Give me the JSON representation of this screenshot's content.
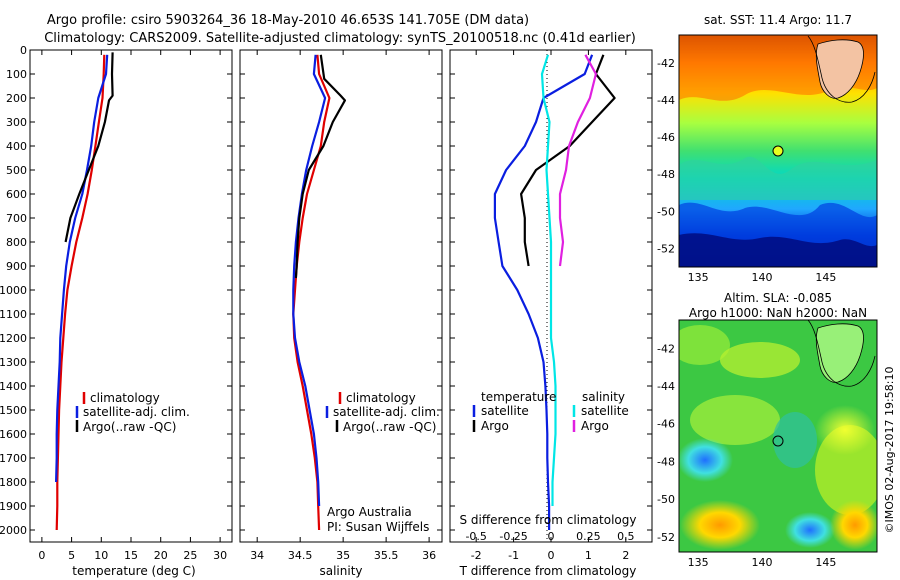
{
  "header": {
    "line1": "Argo profile: csiro 5903264_36 18-May-2010 46.653S 141.705E (DM data)",
    "line2": "Climatology: CARS2009. Satellite-adjusted climatology: synTS_20100518.nc (0.41d earlier)"
  },
  "colors": {
    "climatology": "#e00000",
    "satellite": "#0a1ee0",
    "argo": "#000000",
    "salinity_sat": "#00e6e6",
    "salinity_argo": "#e020e0"
  },
  "credits": {
    "org": "Argo Australia",
    "pi": "PI: Susan Wijffels",
    "imos": "©IMOS 02-Aug-2017 19:58:10"
  },
  "chart_data": [
    {
      "type": "line",
      "id": "temperature-profile",
      "xlabel": "temperature (deg C)",
      "ylabel": "",
      "xlim": [
        -2,
        32
      ],
      "ylim": [
        2050,
        0
      ],
      "x_ticks": [
        0,
        5,
        10,
        15,
        20,
        25,
        30
      ],
      "y_ticks": [
        0,
        100,
        200,
        300,
        400,
        500,
        600,
        700,
        800,
        900,
        1000,
        1100,
        1200,
        1300,
        1400,
        1500,
        1600,
        1700,
        1800,
        1900,
        2000
      ],
      "legend": [
        "climatology",
        "satellite-adj. clim.",
        "Argo(..raw -QC)"
      ],
      "legend_position": "lower-middle",
      "series": [
        {
          "name": "climatology",
          "color": "#e00000",
          "x": [
            10.5,
            10.4,
            10.2,
            9.6,
            9.0,
            8.4,
            7.7,
            6.8,
            5.8,
            5.0,
            4.3,
            3.9,
            3.6,
            3.3,
            3.1,
            2.9,
            2.8,
            2.7,
            2.6,
            2.6,
            2.5
          ],
          "y": [
            20,
            100,
            200,
            300,
            400,
            500,
            600,
            700,
            800,
            900,
            1000,
            1100,
            1200,
            1300,
            1400,
            1500,
            1600,
            1700,
            1800,
            1900,
            2000
          ]
        },
        {
          "name": "satellite-adj. clim.",
          "color": "#0a1ee0",
          "x": [
            11.0,
            10.8,
            9.5,
            8.8,
            8.3,
            7.6,
            6.8,
            5.6,
            4.7,
            4.1,
            3.7,
            3.4,
            3.1,
            3.0,
            2.8,
            2.6,
            2.5,
            2.5,
            2.4
          ],
          "y": [
            20,
            100,
            200,
            300,
            400,
            500,
            600,
            700,
            800,
            900,
            1000,
            1100,
            1200,
            1300,
            1400,
            1500,
            1600,
            1700,
            1800
          ]
        },
        {
          "name": "Argo(..raw -QC)",
          "color": "#000000",
          "x": [
            11.9,
            11.8,
            11.9,
            11.3,
            10.6,
            9.5,
            7.9,
            6.3,
            4.8,
            4.0
          ],
          "y": [
            10,
            100,
            190,
            210,
            300,
            400,
            500,
            600,
            700,
            800
          ]
        }
      ]
    },
    {
      "type": "line",
      "id": "salinity-profile",
      "xlabel": "salinity",
      "ylabel": "",
      "xlim": [
        33.8,
        36.15
      ],
      "ylim": [
        2050,
        0
      ],
      "x_ticks": [
        34,
        34.5,
        35,
        35.5,
        36
      ],
      "legend": [
        "climatology",
        "satellite-adj. clim.",
        "Argo(..raw -QC)"
      ],
      "legend_position": "lower-middle",
      "series": [
        {
          "name": "climatology",
          "color": "#e00000",
          "x": [
            34.7,
            34.72,
            34.84,
            34.78,
            34.74,
            34.66,
            34.58,
            34.53,
            34.49,
            34.46,
            34.44,
            34.42,
            34.43,
            34.47,
            34.53,
            34.58,
            34.63,
            34.67,
            34.7,
            34.71,
            34.72
          ],
          "y": [
            20,
            100,
            200,
            300,
            400,
            500,
            600,
            700,
            800,
            900,
            1000,
            1100,
            1200,
            1300,
            1400,
            1500,
            1600,
            1700,
            1800,
            1900,
            2000
          ]
        },
        {
          "name": "satellite-adj. clim.",
          "color": "#0a1ee0",
          "x": [
            34.68,
            34.66,
            34.79,
            34.72,
            34.64,
            34.57,
            34.52,
            34.48,
            34.45,
            34.43,
            34.42,
            34.42,
            34.44,
            34.49,
            34.56,
            34.61,
            34.66,
            34.69,
            34.71,
            34.72
          ],
          "y": [
            20,
            100,
            200,
            300,
            400,
            500,
            600,
            700,
            800,
            900,
            1000,
            1100,
            1200,
            1300,
            1400,
            1500,
            1600,
            1700,
            1800,
            1900
          ]
        },
        {
          "name": "Argo(..raw -QC)",
          "color": "#000000",
          "x": [
            34.74,
            34.78,
            34.97,
            35.02,
            34.88,
            34.77,
            34.6,
            34.53,
            34.49,
            34.47,
            34.46,
            34.45
          ],
          "y": [
            20,
            120,
            190,
            210,
            300,
            400,
            500,
            600,
            700,
            800,
            900,
            950
          ]
        }
      ]
    },
    {
      "type": "line",
      "id": "difference-profile",
      "xlabel": "T difference from climatology",
      "x2label": "S difference from climatology",
      "ylabel": "",
      "xlim": [
        -2.7,
        2.7
      ],
      "x2lim": [
        -0.675,
        0.675
      ],
      "ylim": [
        2050,
        0
      ],
      "x_ticks": [
        -2,
        -1,
        0,
        1,
        2
      ],
      "x2_ticks": [
        -0.5,
        -0.25,
        0,
        0.25,
        0.5
      ],
      "x2_tick_labels": [
        "-0.5",
        "-0.25",
        "0",
        "0.25",
        "0.5"
      ],
      "legend_titles": [
        "temperature",
        "salinity"
      ],
      "legend": [
        "satellite",
        "Argo",
        "satellite",
        "Argo"
      ],
      "series": [
        {
          "name": "satellite",
          "group": "temperature",
          "axis": "T",
          "color": "#0a1ee0",
          "x": [
            1.1,
            0.9,
            -0.2,
            -0.4,
            -0.7,
            -1.2,
            -1.5,
            -1.5,
            -1.4,
            -1.3,
            -0.9,
            -0.6,
            -0.35,
            -0.2,
            -0.15,
            -0.12,
            -0.1,
            -0.1,
            -0.08,
            -0.05,
            -0.05
          ],
          "y": [
            20,
            100,
            200,
            300,
            400,
            500,
            600,
            700,
            800,
            900,
            1000,
            1100,
            1200,
            1300,
            1400,
            1500,
            1600,
            1700,
            1800,
            1900,
            2000
          ]
        },
        {
          "name": "Argo",
          "group": "temperature",
          "axis": "T",
          "color": "#000000",
          "x": [
            1.4,
            1.2,
            1.7,
            1.1,
            0.5,
            -0.4,
            -0.8,
            -0.7,
            -0.7,
            -0.6
          ],
          "y": [
            20,
            100,
            200,
            300,
            400,
            500,
            600,
            700,
            800,
            900
          ]
        },
        {
          "name": "satellite",
          "group": "salinity",
          "axis": "S",
          "color": "#00e6e6",
          "x": [
            -0.02,
            -0.06,
            -0.05,
            -0.01,
            -0.02,
            -0.03,
            -0.02,
            -0.01,
            0.0,
            0.0,
            0.0,
            0.0,
            0.0,
            0.02,
            0.03,
            0.03,
            0.03,
            0.02,
            0.01,
            0.01
          ],
          "y": [
            20,
            100,
            200,
            300,
            400,
            500,
            600,
            700,
            800,
            900,
            1000,
            1100,
            1200,
            1300,
            1400,
            1500,
            1600,
            1700,
            1800,
            1900
          ]
        },
        {
          "name": "Argo",
          "group": "salinity",
          "axis": "S",
          "color": "#e020e0",
          "x": [
            0.23,
            0.3,
            0.26,
            0.18,
            0.12,
            0.1,
            0.06,
            0.06,
            0.08,
            0.06
          ],
          "y": [
            20,
            100,
            200,
            300,
            400,
            500,
            600,
            700,
            800,
            900
          ]
        }
      ]
    },
    {
      "type": "heatmap",
      "id": "sst-map",
      "title": "sat. SST: 11.4  Argo: 11.7",
      "xlim": [
        133.5,
        149
      ],
      "ylim": [
        -53,
        -40.5
      ],
      "x_ticks": [
        135,
        140,
        145
      ],
      "y_ticks": [
        -42,
        -44,
        -46,
        -48,
        -50,
        -52
      ],
      "marker": {
        "lon": 141.705,
        "lat": -46.653
      }
    },
    {
      "type": "heatmap",
      "id": "sla-map",
      "title": "Altim. SLA: -0.085",
      "subtitle": "Argo h1000: NaN h2000: NaN",
      "xlim": [
        133.5,
        149
      ],
      "ylim": [
        -52.8,
        -40.5
      ],
      "x_ticks": [
        135,
        140,
        145
      ],
      "y_ticks": [
        -42,
        -44,
        -46,
        -48,
        -50,
        -52
      ],
      "marker": {
        "lon": 141.705,
        "lat": -46.653
      }
    }
  ]
}
